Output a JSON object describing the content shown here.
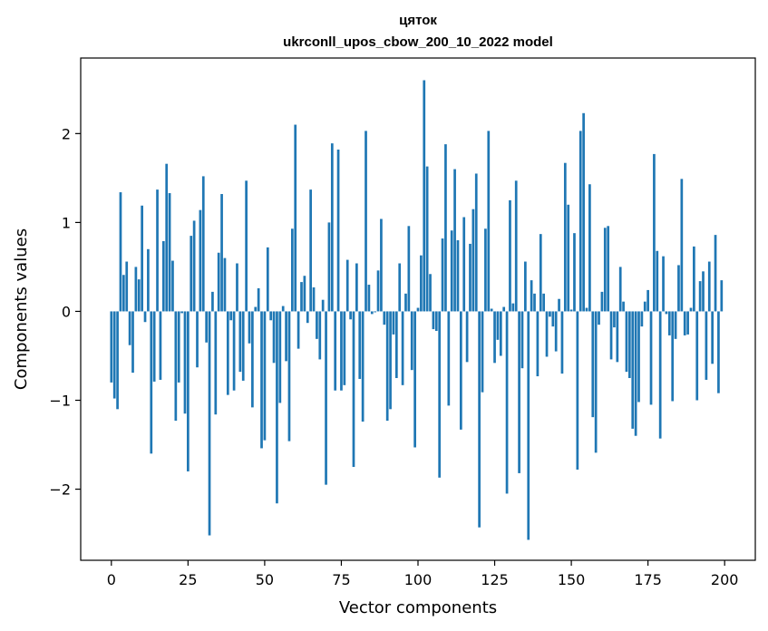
{
  "chart_data": {
    "type": "bar",
    "title_line1": "цяток",
    "title_line2": "ukrconll_upos_cbow_200_10_2022 model",
    "xlabel": "Vector components",
    "ylabel": "Components values",
    "xlim": [
      -10,
      210
    ],
    "ylim": [
      -2.8,
      2.85
    ],
    "xticks": [
      0,
      25,
      50,
      75,
      100,
      125,
      150,
      175,
      200
    ],
    "yticks": [
      -2,
      -1,
      0,
      1,
      2
    ],
    "ytick_labels": [
      "−2",
      "−1",
      "0",
      "1",
      "2"
    ],
    "bar_color": "#1f77b4",
    "grid": false,
    "x": [
      0,
      1,
      2,
      3,
      4,
      5,
      6,
      7,
      8,
      9,
      10,
      11,
      12,
      13,
      14,
      15,
      16,
      17,
      18,
      19,
      20,
      21,
      22,
      23,
      24,
      25,
      26,
      27,
      28,
      29,
      30,
      31,
      32,
      33,
      34,
      35,
      36,
      37,
      38,
      39,
      40,
      41,
      42,
      43,
      44,
      45,
      46,
      47,
      48,
      49,
      50,
      51,
      52,
      53,
      54,
      55,
      56,
      57,
      58,
      59,
      60,
      61,
      62,
      63,
      64,
      65,
      66,
      67,
      68,
      69,
      70,
      71,
      72,
      73,
      74,
      75,
      76,
      77,
      78,
      79,
      80,
      81,
      82,
      83,
      84,
      85,
      86,
      87,
      88,
      89,
      90,
      91,
      92,
      93,
      94,
      95,
      96,
      97,
      98,
      99,
      100,
      101,
      102,
      103,
      104,
      105,
      106,
      107,
      108,
      109,
      110,
      111,
      112,
      113,
      114,
      115,
      116,
      117,
      118,
      119,
      120,
      121,
      122,
      123,
      124,
      125,
      126,
      127,
      128,
      129,
      130,
      131,
      132,
      133,
      134,
      135,
      136,
      137,
      138,
      139,
      140,
      141,
      142,
      143,
      144,
      145,
      146,
      147,
      148,
      149,
      150,
      151,
      152,
      153,
      154,
      155,
      156,
      157,
      158,
      159,
      160,
      161,
      162,
      163,
      164,
      165,
      166,
      167,
      168,
      169,
      170,
      171,
      172,
      173,
      174,
      175,
      176,
      177,
      178,
      179,
      180,
      181,
      182,
      183,
      184,
      185,
      186,
      187,
      188,
      189,
      190,
      191,
      192,
      193,
      194,
      195,
      196,
      197,
      198,
      199
    ],
    "values": [
      -0.8,
      -0.98,
      -1.1,
      1.34,
      0.41,
      0.56,
      -0.38,
      -0.69,
      0.5,
      0.36,
      1.19,
      -0.12,
      0.7,
      -1.6,
      -0.79,
      1.37,
      -0.77,
      0.79,
      1.66,
      1.33,
      0.57,
      -1.23,
      -0.8,
      -0.02,
      -1.15,
      -1.8,
      0.85,
      1.02,
      -0.63,
      1.14,
      1.52,
      -0.35,
      -2.52,
      0.22,
      -1.16,
      0.66,
      1.32,
      0.6,
      -0.94,
      -0.1,
      -0.89,
      0.54,
      -0.68,
      -0.78,
      1.47,
      -0.36,
      -1.08,
      0.05,
      0.26,
      -1.54,
      -1.45,
      0.72,
      -0.1,
      -0.58,
      -2.16,
      -1.03,
      0.06,
      -0.56,
      -1.46,
      0.93,
      2.1,
      -0.42,
      0.33,
      0.4,
      -0.13,
      1.37,
      0.27,
      -0.31,
      -0.54,
      0.13,
      -1.95,
      1.0,
      1.89,
      -0.89,
      1.82,
      -0.89,
      -0.83,
      0.58,
      -0.09,
      -1.75,
      0.54,
      -0.76,
      -1.24,
      2.03,
      0.3,
      -0.03,
      -0.01,
      0.46,
      1.04,
      -0.15,
      -1.23,
      -1.1,
      -0.26,
      -0.75,
      0.54,
      -0.83,
      0.2,
      0.96,
      -0.66,
      -1.53,
      0.04,
      0.63,
      2.6,
      1.63,
      0.42,
      -0.2,
      -0.22,
      -1.87,
      0.82,
      1.88,
      -1.06,
      0.91,
      1.6,
      0.8,
      -1.33,
      1.06,
      -0.57,
      0.76,
      1.15,
      1.55,
      -2.43,
      -0.91,
      0.93,
      2.03,
      0.03,
      -0.58,
      -0.32,
      -0.5,
      0.05,
      -2.05,
      1.25,
      0.09,
      1.47,
      -1.82,
      -0.64,
      0.56,
      -2.57,
      0.35,
      0.2,
      -0.73,
      0.87,
      0.2,
      -0.51,
      -0.06,
      -0.17,
      -0.45,
      0.14,
      -0.7,
      1.67,
      1.2,
      0.02,
      0.88,
      -1.78,
      2.03,
      2.23,
      0.04,
      1.43,
      -1.19,
      -1.59,
      -0.15,
      0.22,
      0.94,
      0.96,
      -0.54,
      -0.18,
      -0.57,
      0.5,
      0.11,
      -0.68,
      -0.75,
      -1.32,
      -1.4,
      -1.02,
      -0.17,
      0.11,
      0.24,
      -1.05,
      1.77,
      0.68,
      -1.43,
      0.62,
      -0.03,
      -0.27,
      -1.01,
      -0.31,
      0.52,
      1.49,
      -0.27,
      -0.26,
      0.04,
      0.73,
      -1.0,
      0.34,
      0.45,
      -0.77,
      0.56,
      -0.59,
      0.86,
      -0.92,
      0.35
    ]
  }
}
